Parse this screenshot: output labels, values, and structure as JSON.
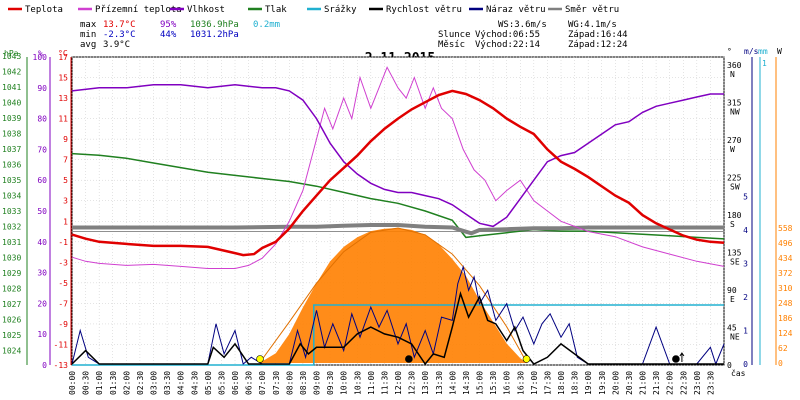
{
  "chart_data": {
    "type": "line",
    "title": "2.11.2015",
    "time_axis_label": "čas",
    "x_ticks": [
      "00:00",
      "00:30",
      "01:00",
      "01:30",
      "02:00",
      "02:30",
      "03:00",
      "03:30",
      "04:00",
      "04:30",
      "05:00",
      "05:30",
      "06:00",
      "06:30",
      "07:00",
      "07:30",
      "08:00",
      "08:30",
      "09:00",
      "09:30",
      "10:00",
      "10:30",
      "11:00",
      "11:30",
      "12:00",
      "12:30",
      "13:00",
      "13:30",
      "14:00",
      "14:30",
      "15:00",
      "15:30",
      "16:00",
      "16:30",
      "17:00",
      "17:30",
      "18:00",
      "18:30",
      "19:00",
      "19:30",
      "20:00",
      "20:30",
      "21:00",
      "21:30",
      "22:00",
      "22:30",
      "23:00",
      "23:30"
    ],
    "legend": [
      {
        "label": "Teplota",
        "color": "#e00000"
      },
      {
        "label": "Přízemní teplota",
        "color": "#d040d0"
      },
      {
        "label": "Vlhkost",
        "color": "#8000c0"
      },
      {
        "label": "Tlak",
        "color": "#208020"
      },
      {
        "label": "Srážky",
        "color": "#20b0d0"
      },
      {
        "label": "Rychlost větru",
        "color": "#000000"
      },
      {
        "label": "Náraz větru",
        "color": "#000080"
      },
      {
        "label": "Směr větru",
        "color": "#808080"
      }
    ],
    "stats": {
      "max_label": "max",
      "min_label": "min",
      "avg_label": "avg",
      "max_temp": "13.7°C",
      "max_hum": "95%",
      "max_press": "1036.9hPa",
      "max_rain": "0.2mm",
      "min_temp": "-2.3°C",
      "min_hum": "44%",
      "min_press": "1031.2hPa",
      "avg_temp": "3.9°C",
      "ws": "WS:3.6m/s",
      "wg": "WG:4.1m/s",
      "sun_label": "Slunce",
      "sunrise": "Východ:06:55",
      "sunset": "Západ:16:44",
      "moon_label": "Měsíc",
      "moonrise": "Východ:22:14",
      "moonset": "Západ:12:24"
    },
    "left_axes": {
      "hpa": {
        "unit": "hPa",
        "ticks": [
          "1043",
          "1042",
          "1041",
          "1040",
          "1039",
          "1038",
          "1037",
          "1036",
          "1035",
          "1034",
          "1033",
          "1032",
          "1031",
          "1030",
          "1029",
          "1028",
          "1027",
          "1026",
          "1025",
          "1024"
        ]
      },
      "percent": {
        "unit": "%",
        "ticks": [
          "100",
          "90",
          "80",
          "70",
          "60",
          "50",
          "40",
          "30",
          "20",
          "10",
          "0"
        ]
      },
      "celsius": {
        "unit": "°C",
        "ticks": [
          "17",
          "15",
          "13",
          "11",
          "9",
          "7",
          "5",
          "3",
          "1",
          "-1",
          "-3",
          "-5",
          "-7",
          "-9",
          "-11",
          "-13"
        ]
      }
    },
    "right_axes": {
      "deg": {
        "unit": "°",
        "ticks": [
          "360",
          "315",
          "270",
          "225",
          "180",
          "135",
          "90",
          "45",
          "0"
        ],
        "compass": [
          "N",
          "NW",
          "W",
          "SW",
          "S",
          "SE",
          "E",
          "NE",
          ""
        ]
      },
      "ms": {
        "unit": "m/s",
        "ticks": [
          "5",
          "4",
          "3",
          "2",
          "1",
          "0"
        ]
      },
      "mm": {
        "unit": "mm",
        "top": "1"
      },
      "w": {
        "unit": "W",
        "ticks": [
          "558",
          "496",
          "434",
          "372",
          "310",
          "248",
          "186",
          "124",
          "62",
          "0"
        ]
      }
    },
    "series": {
      "temperature": {
        "name": "Teplota",
        "color": "#e00000",
        "x": [
          0,
          0.5,
          1,
          2,
          3,
          4,
          5,
          5.5,
          6,
          6.3,
          6.7,
          7,
          7.5,
          8,
          8.5,
          9,
          9.5,
          10,
          10.5,
          11,
          11.5,
          12,
          12.5,
          13,
          13.5,
          14,
          14.5,
          15,
          15.5,
          16,
          16.5,
          17,
          17.5,
          18,
          18.5,
          19,
          19.5,
          20,
          20.5,
          21,
          21.5,
          22,
          22.5,
          23,
          23.5,
          24
        ],
        "values": [
          -0.3,
          -0.7,
          -1,
          -1.2,
          -1.4,
          -1.4,
          -1.5,
          -1.8,
          -2.1,
          -2.3,
          -2.2,
          -1.6,
          -1,
          0.3,
          2,
          3.5,
          5,
          6.2,
          7.4,
          8.8,
          10,
          11,
          11.9,
          12.6,
          13.3,
          13.7,
          13.4,
          12.8,
          12,
          11,
          10.2,
          9.5,
          8,
          6.8,
          6.1,
          5.3,
          4.4,
          3.5,
          2.8,
          1.6,
          0.8,
          0.2,
          -0.4,
          -0.8,
          -1,
          -1.1
        ]
      },
      "ground_temperature": {
        "name": "Přízemní teplota",
        "color": "#d040d0",
        "x": [
          0,
          0.5,
          1,
          2,
          3,
          4,
          5,
          6,
          6.5,
          7,
          7.5,
          8,
          8.5,
          9,
          9.3,
          9.6,
          10,
          10.3,
          10.6,
          11,
          11.3,
          11.6,
          12,
          12.3,
          12.6,
          13,
          13.3,
          13.6,
          14,
          14.4,
          14.8,
          15.2,
          15.6,
          16,
          16.5,
          17,
          17.5,
          18,
          18.5,
          19,
          20,
          21,
          22,
          23,
          24
        ],
        "values": [
          -2.5,
          -2.9,
          -3.1,
          -3.3,
          -3.2,
          -3.4,
          -3.6,
          -3.6,
          -3.3,
          -2.6,
          -1.2,
          1,
          4,
          9,
          12,
          10,
          13,
          11,
          15,
          12,
          14,
          16,
          14,
          13,
          15,
          12,
          14,
          12,
          11,
          8,
          6,
          5,
          3,
          4,
          5,
          3,
          2,
          1,
          0.5,
          0,
          -0.5,
          -1.5,
          -2.2,
          -2.9,
          -3.4
        ]
      },
      "humidity": {
        "name": "Vlhkost",
        "color": "#8000c0",
        "x": [
          0,
          1,
          2,
          3,
          4,
          5,
          6,
          7,
          7.5,
          8,
          8.5,
          9,
          9.5,
          10,
          10.5,
          11,
          11.5,
          12,
          12.5,
          13,
          13.5,
          14,
          14.5,
          15,
          15.5,
          16,
          16.5,
          17,
          17.5,
          18,
          18.5,
          19,
          19.5,
          20,
          20.5,
          21,
          21.5,
          22,
          22.5,
          23,
          23.5,
          24
        ],
        "values": [
          89,
          90,
          90,
          91,
          91,
          90,
          91,
          90,
          90,
          89,
          86,
          80,
          72,
          66,
          62,
          59,
          57,
          56,
          56,
          55,
          54,
          52,
          49,
          46,
          45,
          48,
          54,
          60,
          66,
          68,
          69,
          72,
          75,
          78,
          79,
          82,
          84,
          85,
          86,
          87,
          88,
          88
        ]
      },
      "pressure": {
        "name": "Tlak",
        "color": "#208020",
        "x": [
          0,
          1,
          2,
          3,
          4,
          5,
          6,
          7,
          8,
          9,
          10,
          11,
          12,
          13,
          14,
          14.5,
          15,
          16,
          17,
          18,
          19,
          20,
          21,
          22,
          23,
          24
        ],
        "values": [
          1036.7,
          1036.6,
          1036.4,
          1036.1,
          1035.8,
          1035.5,
          1035.3,
          1035.1,
          1034.9,
          1034.6,
          1034.2,
          1033.8,
          1033.5,
          1033.0,
          1032.4,
          1031.3,
          1031.4,
          1031.6,
          1031.8,
          1031.7,
          1031.7,
          1031.6,
          1031.5,
          1031.4,
          1031.3,
          1031.2
        ]
      },
      "rain": {
        "name": "Srážky",
        "color": "#20b0d0",
        "x": [
          0,
          8.9,
          8.9,
          24
        ],
        "values": [
          0,
          0,
          0.2,
          0.2
        ]
      },
      "wind_speed": {
        "name": "Rychlost větru",
        "color": "#000000",
        "x": [
          0,
          0.5,
          1,
          2,
          4,
          5,
          5.2,
          5.6,
          6,
          6.5,
          7,
          8,
          8.4,
          8.7,
          9,
          9.5,
          10,
          10.5,
          11,
          11.5,
          12,
          12.5,
          13,
          13.3,
          13.7,
          14,
          14.3,
          14.6,
          15,
          15.3,
          15.6,
          16,
          16.3,
          16.6,
          17,
          17.5,
          18,
          19,
          20,
          21,
          22,
          23,
          24
        ],
        "values": [
          0,
          0.4,
          0,
          0,
          0,
          0,
          0.5,
          0.2,
          0.6,
          0,
          0,
          0,
          0.6,
          0.3,
          0.5,
          0.5,
          0.5,
          0.9,
          1.1,
          0.9,
          0.8,
          0.6,
          0,
          0.3,
          0.2,
          1.1,
          2.1,
          1.4,
          2,
          1.3,
          1.2,
          0.7,
          1.1,
          0.4,
          0,
          0.2,
          0.6,
          0,
          0,
          0,
          0,
          0,
          0
        ]
      },
      "wind_gust": {
        "name": "Náraz větru",
        "color": "#000080",
        "x": [
          0,
          0.3,
          0.6,
          1,
          1.5,
          2,
          3,
          4,
          4.5,
          5,
          5.3,
          5.6,
          6,
          6.3,
          6.6,
          7,
          8,
          8.3,
          8.6,
          9,
          9.3,
          9.6,
          10,
          10.3,
          10.6,
          11,
          11.3,
          11.6,
          12,
          12.3,
          12.6,
          13,
          13.3,
          13.6,
          14,
          14.2,
          14.4,
          14.6,
          14.8,
          15,
          15.3,
          15.6,
          16,
          16.3,
          16.6,
          17,
          17.3,
          17.6,
          18,
          18.3,
          18.6,
          19,
          20,
          21,
          21.5,
          22,
          22.5,
          23,
          23.5,
          23.7,
          24
        ],
        "values": [
          0,
          1,
          0.2,
          0,
          0,
          0,
          0,
          0,
          0,
          0,
          1.2,
          0.3,
          1,
          0,
          0.2,
          0,
          0,
          1,
          0.2,
          1.6,
          0.5,
          1.2,
          0.4,
          1.5,
          0.8,
          1.7,
          1.1,
          1.6,
          0.6,
          1.2,
          0.2,
          1,
          0.3,
          1.4,
          1.3,
          2.4,
          2.9,
          2.2,
          2.6,
          1.8,
          2.2,
          1.3,
          1.8,
          1,
          1.4,
          0.6,
          1.2,
          1.5,
          0.8,
          1.2,
          0.2,
          0,
          0,
          0,
          1.1,
          0,
          0,
          0,
          0.5,
          0,
          0.6
        ]
      },
      "wind_direction": {
        "name": "Směr větru",
        "color": "#808080",
        "x": [
          0,
          3,
          6,
          8,
          9,
          10,
          11,
          12,
          13,
          14,
          14.5,
          14.7,
          15,
          16,
          17,
          18,
          19,
          20,
          21,
          22,
          23,
          24
        ],
        "values": [
          165,
          165,
          165,
          166,
          166,
          167,
          168,
          168,
          166,
          165,
          160,
          158,
          162,
          163,
          164,
          164,
          165,
          165,
          165,
          165,
          165,
          165
        ]
      },
      "solar_radiation": {
        "name": "",
        "color": "#ff8000",
        "x": [
          6.9,
          7.5,
          8,
          8.5,
          9,
          9.5,
          10,
          10.5,
          11,
          11.5,
          12,
          12.5,
          13,
          13.5,
          14,
          14.5,
          15,
          15.5,
          16,
          16.5,
          16.75
        ],
        "values": [
          0,
          40,
          120,
          230,
          330,
          420,
          480,
          520,
          545,
          555,
          558,
          550,
          530,
          490,
          430,
          360,
          260,
          170,
          80,
          20,
          0
        ]
      },
      "solar_theoretical": {
        "name": "",
        "color": "#e07000",
        "x": [
          6.9,
          8,
          9,
          10,
          11,
          12,
          13,
          14,
          15,
          16,
          16.75
        ],
        "values": [
          0,
          170,
          330,
          460,
          540,
          558,
          530,
          450,
          320,
          150,
          0
        ]
      }
    },
    "markers": {
      "sunrise_time": 6.92,
      "sunset_time": 16.73,
      "moonrise_time": 22.23,
      "moonset_time": 12.4
    }
  }
}
